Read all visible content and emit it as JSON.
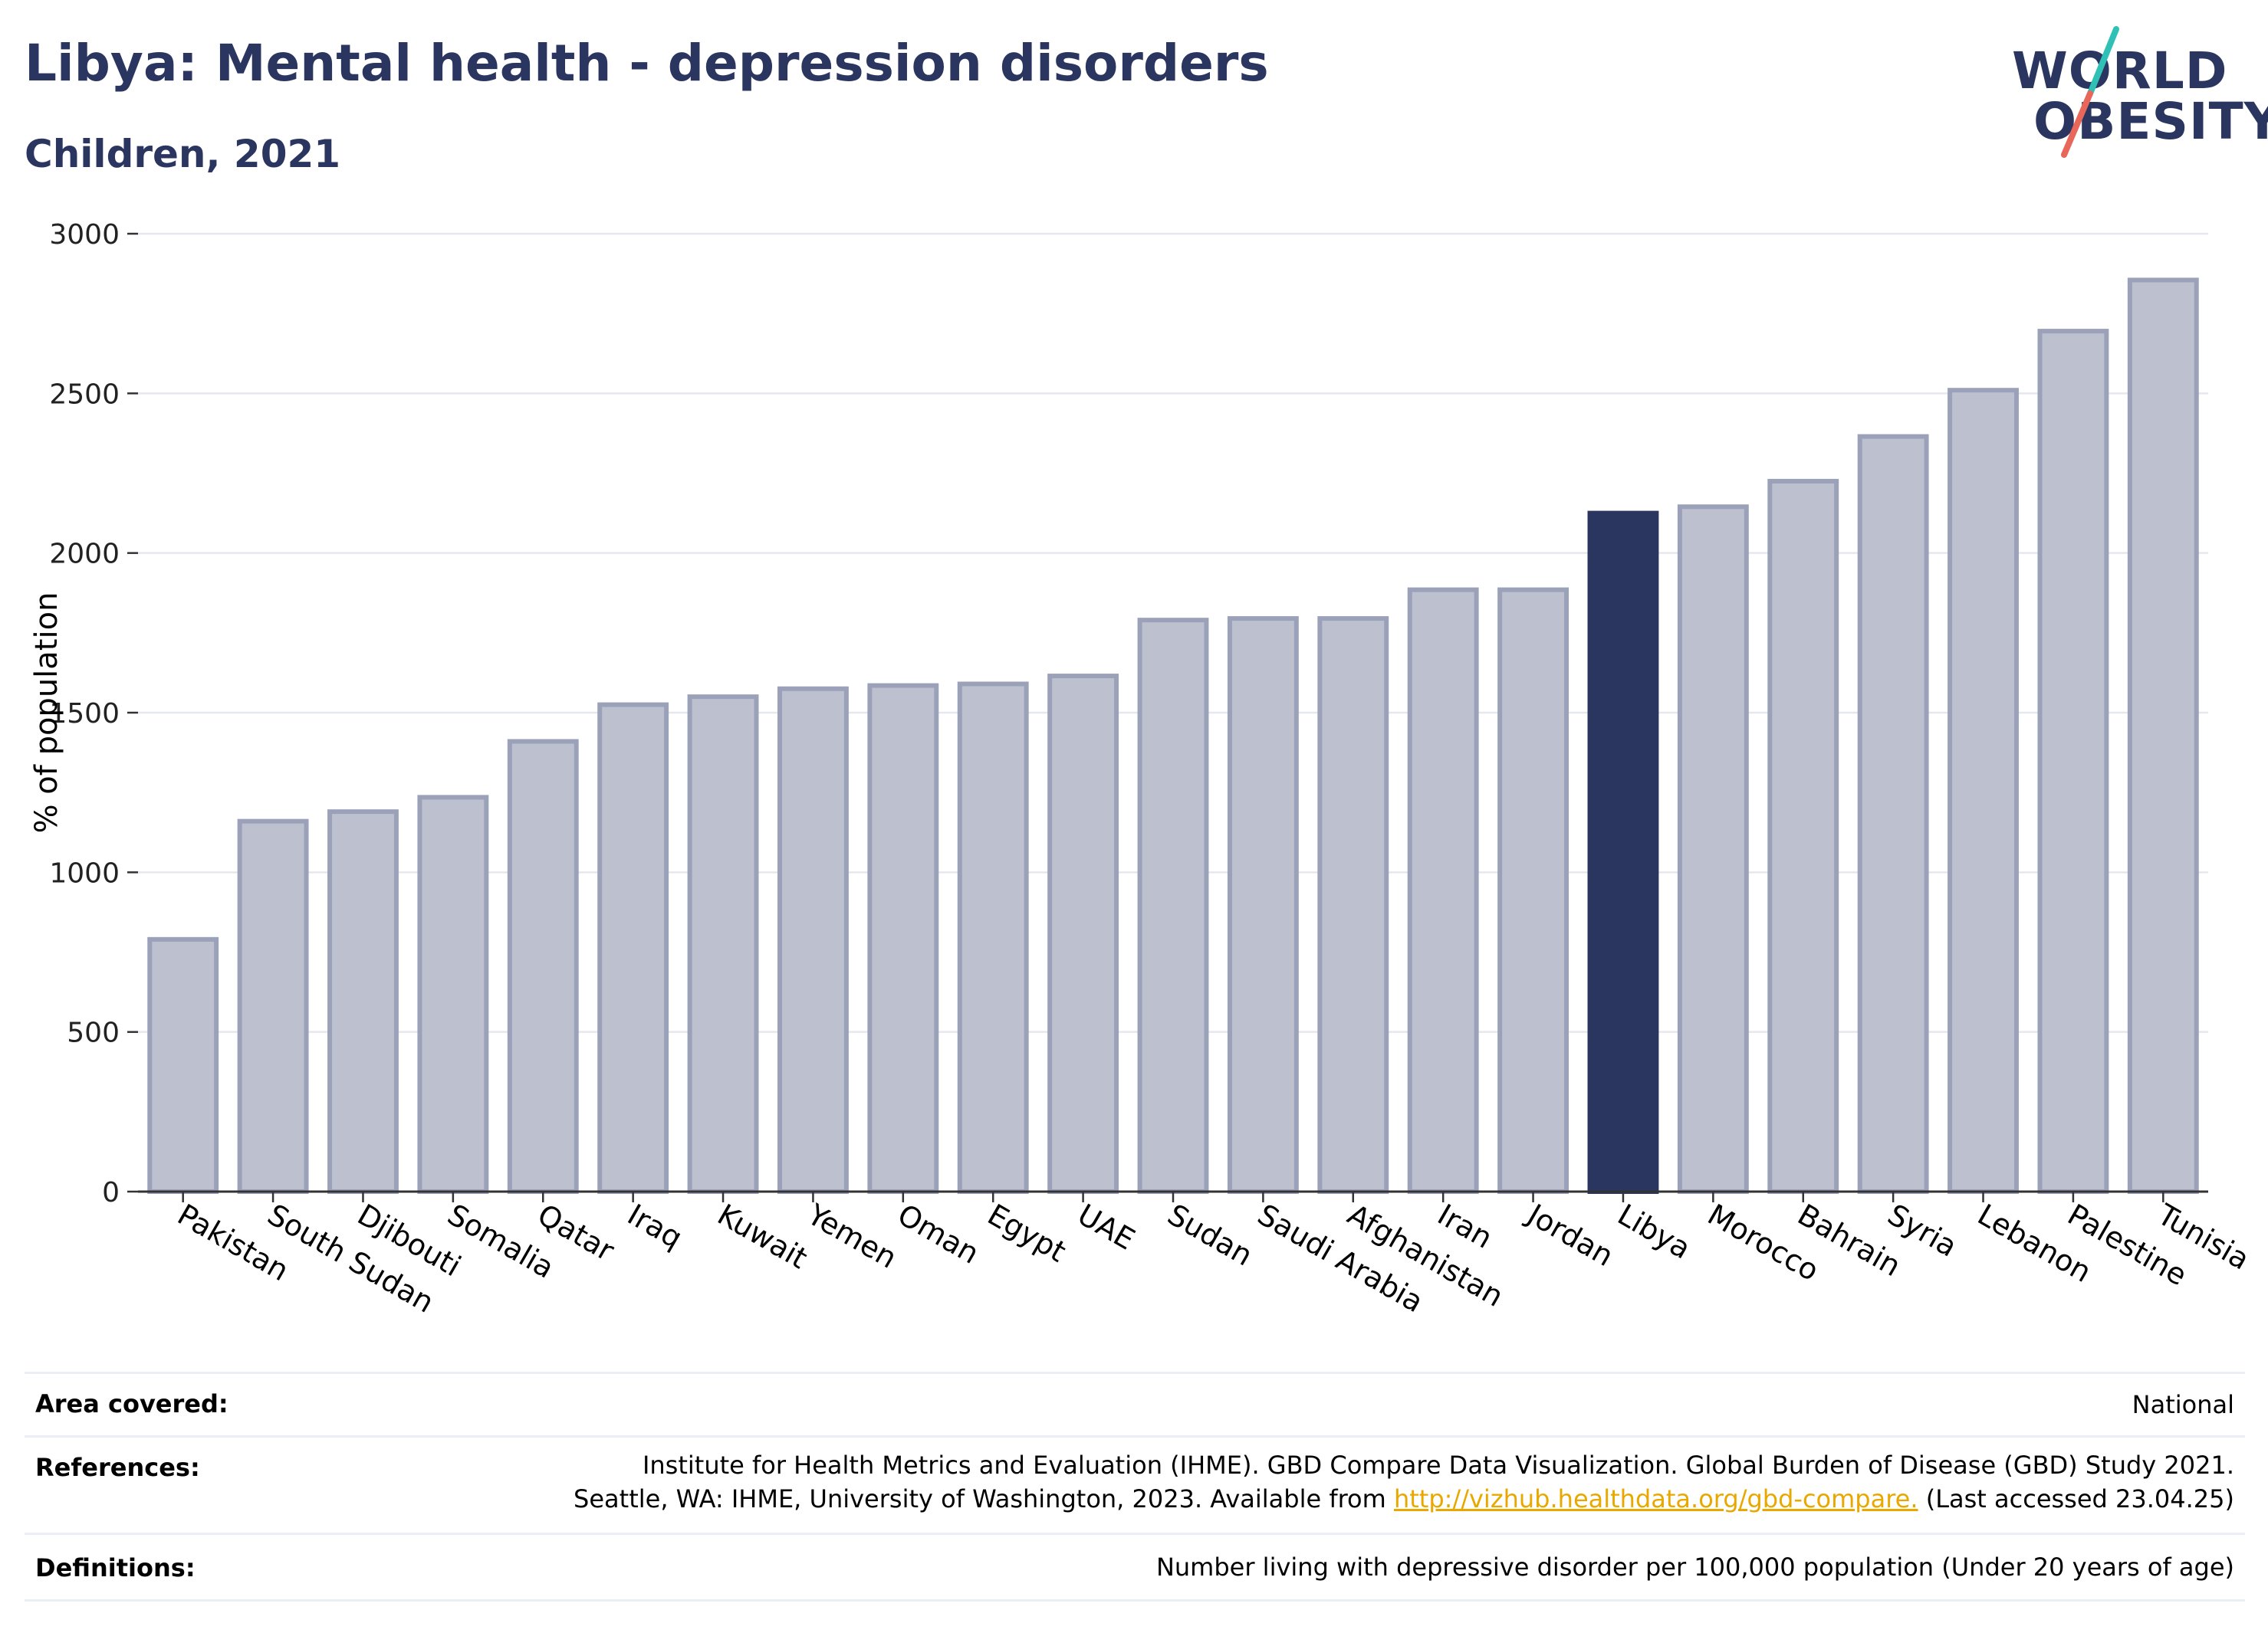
{
  "header": {
    "title": "Libya: Mental health - depression disorders",
    "subtitle": "Children, 2021"
  },
  "logo": {
    "line1": "WORLD",
    "line2": "OBESITY",
    "colors": {
      "text": "#2a3560",
      "slash_top": "#2fc1b6",
      "slash_bottom": "#e8675a"
    }
  },
  "colors": {
    "highlight_bar": "#2a3560",
    "other_bar_fill": "#bdc1cf",
    "other_bar_stroke": "#9ba1b8",
    "grid": "#e6e8ee",
    "axis": "#333333",
    "title": "#2a3560",
    "link": "#e8a800"
  },
  "chart_data": {
    "type": "bar",
    "title": "Libya: Mental health - depression disorders",
    "subtitle": "Children, 2021",
    "xlabel": "",
    "ylabel": "% of population",
    "ylim": [
      0,
      3000
    ],
    "yticks": [
      0,
      500,
      1000,
      1500,
      2000,
      2500,
      3000
    ],
    "grid": true,
    "highlight": "Libya",
    "categories": [
      "Pakistan",
      "South Sudan",
      "Djibouti",
      "Somalia",
      "Qatar",
      "Iraq",
      "Kuwait",
      "Yemen",
      "Oman",
      "Egypt",
      "UAE",
      "Sudan",
      "Saudi Arabia",
      "Afghanistan",
      "Iran",
      "Jordan",
      "Libya",
      "Morocco",
      "Bahrain",
      "Syria",
      "Lebanon",
      "Palestine",
      "Tunisia"
    ],
    "values": [
      790,
      1160,
      1190,
      1235,
      1410,
      1525,
      1550,
      1575,
      1585,
      1590,
      1615,
      1790,
      1795,
      1795,
      1885,
      1885,
      2125,
      2145,
      2225,
      2365,
      2510,
      2695,
      2855
    ]
  },
  "meta": {
    "area_label": "Area covered:",
    "area_value": "National",
    "references_label": "References:",
    "references_line1": "Institute for Health Metrics and Evaluation (IHME). GBD Compare Data Visualization. Global Burden of Disease (GBD) Study 2021.",
    "references_line2_pre": "Seattle, WA: IHME, University of Washington, 2023. Available from ",
    "references_link": "http://vizhub.healthdata.org/gbd-compare.",
    "references_line2_post": " (Last accessed 23.04.25)",
    "definitions_label": "Definitions:",
    "definitions_value": "Number living with depressive disorder per 100,000 population (Under 20 years of age)"
  }
}
